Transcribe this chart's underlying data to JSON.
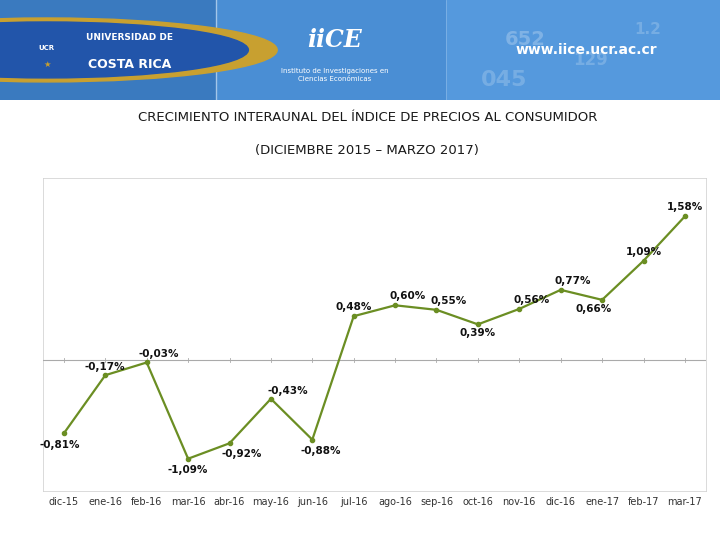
{
  "title_line1": "CRECIMIENTO INTERAUNAL DEL ÍNDICE DE PRECIOS AL CONSUMIDOR",
  "title_line2": "(DICIEMBRE 2015 – MARZO 2017)",
  "x_labels": [
    "dic-15",
    "ene-16",
    "feb-16",
    "mar-16",
    "abr-16",
    "may-16",
    "jun-16",
    "jul-16",
    "ago-16",
    "sep-16",
    "oct-16",
    "nov-16",
    "dic-16",
    "ene-17",
    "feb-17",
    "mar-17"
  ],
  "values": [
    -0.81,
    -0.17,
    -0.03,
    -1.09,
    -0.92,
    -0.43,
    -0.88,
    0.48,
    0.6,
    0.55,
    0.39,
    0.56,
    0.77,
    0.66,
    1.09,
    1.58
  ],
  "all_annotations": [
    "-0,81%",
    "-0,17%",
    "-0,03%",
    "-1,09%",
    "-0,92%",
    "-0,43%",
    "-0,88%",
    "0,48%",
    "0,60%",
    "0,55%",
    "0,39%",
    "0,56%",
    "0,77%",
    "0,66%",
    "1,09%",
    "1,58%"
  ],
  "offsets_y": [
    -0.13,
    0.09,
    0.09,
    -0.12,
    -0.12,
    0.09,
    -0.12,
    0.1,
    0.1,
    0.1,
    -0.1,
    0.1,
    0.1,
    -0.1,
    0.1,
    0.1
  ],
  "offsets_x": [
    -0.1,
    0.0,
    0.3,
    0.0,
    0.3,
    0.4,
    0.2,
    0.0,
    0.3,
    0.3,
    0.0,
    0.3,
    0.3,
    -0.2,
    0.0,
    0.0
  ],
  "line_color": "#6b8e23",
  "bg_color": "#ffffff",
  "title_fontsize": 9.5,
  "label_fontsize": 7.0,
  "annotation_fontsize": 7.5,
  "zero_line_color": "#aaaaaa",
  "ylim": [
    -1.45,
    2.0
  ]
}
